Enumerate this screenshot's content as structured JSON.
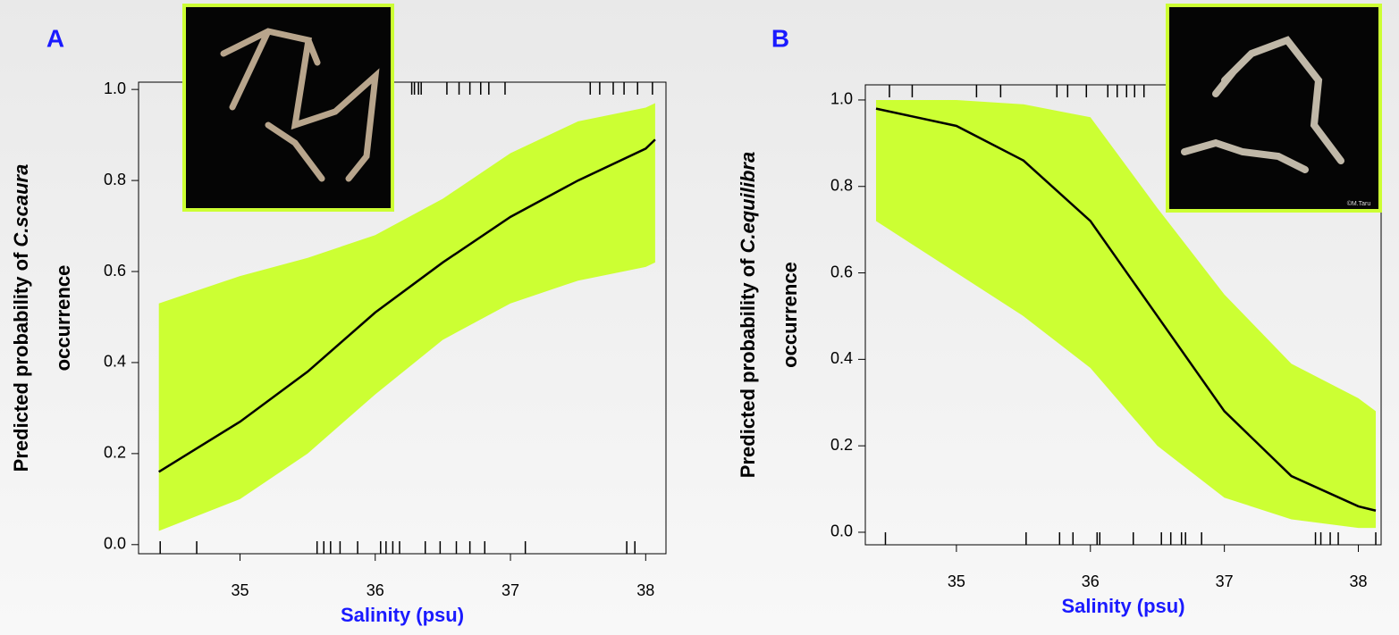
{
  "chart_data": [
    {
      "type": "line",
      "panel_label": "A",
      "ylabel": {
        "text": "Predicted probability of",
        "species": "C.scaura",
        "line2": "occurrence"
      },
      "xlabel": "Salinity (psu)",
      "x": [
        34.4,
        35,
        35.5,
        36,
        36.5,
        37,
        37.5,
        38,
        38.07
      ],
      "values": [
        0.16,
        0.27,
        0.38,
        0.51,
        0.62,
        0.72,
        0.8,
        0.87,
        0.89
      ],
      "ci_lower": [
        0.03,
        0.1,
        0.2,
        0.33,
        0.45,
        0.53,
        0.58,
        0.61,
        0.62
      ],
      "ci_upper": [
        0.53,
        0.59,
        0.63,
        0.68,
        0.76,
        0.86,
        0.93,
        0.96,
        0.97
      ],
      "line_color": "#000000",
      "band_color": "#ccff33",
      "rug_bottom": [
        34.41,
        34.68,
        35.57,
        35.62,
        35.67,
        35.74,
        35.87,
        36.04,
        36.08,
        36.13,
        36.18,
        36.37,
        36.48,
        36.6,
        36.7,
        36.81,
        37.11,
        37.86,
        37.92
      ],
      "rug_top": [
        36.27,
        36.29,
        36.32,
        36.34,
        36.53,
        36.62,
        36.7,
        36.78,
        36.84,
        36.96,
        37.59,
        37.66,
        37.76,
        37.84,
        37.94,
        38.05
      ],
      "xlim": [
        34.25,
        38.15
      ],
      "ylim": [
        -0.02,
        1.016
      ],
      "xticks": [
        35,
        36,
        37,
        38
      ],
      "yticks": [
        {
          "value": 0,
          "label": "0.0"
        },
        0.2,
        0.4,
        0.6,
        0.8,
        {
          "value": 1,
          "label": "1.0"
        }
      ]
    },
    {
      "type": "line",
      "panel_label": "B",
      "ylabel": {
        "text": "Predicted probability of",
        "species": "C.equilibra",
        "line2": "occurrence"
      },
      "xlabel": "Salinity (psu)",
      "photo_credit": "©M.Taru",
      "x": [
        34.4,
        35,
        35.5,
        36,
        36.5,
        37,
        37.5,
        38,
        38.13
      ],
      "values": [
        0.98,
        0.94,
        0.86,
        0.72,
        0.5,
        0.28,
        0.13,
        0.06,
        0.05
      ],
      "ci_lower": [
        0.72,
        0.6,
        0.5,
        0.38,
        0.2,
        0.08,
        0.03,
        0.01,
        0.01
      ],
      "ci_upper": [
        1.0,
        1.0,
        0.99,
        0.96,
        0.75,
        0.55,
        0.39,
        0.31,
        0.28
      ],
      "line_color": "#000000",
      "band_color": "#ccff33",
      "rug_bottom": [
        34.47,
        35.52,
        35.77,
        35.87,
        36.05,
        36.07,
        36.32,
        36.53,
        36.6,
        36.68,
        36.71,
        36.83,
        37.68,
        37.72,
        37.79,
        37.85,
        38.13
      ],
      "rug_top": [
        34.5,
        34.67,
        35.15,
        35.33,
        35.75,
        35.83,
        35.97,
        36.13,
        36.2,
        36.27,
        36.33,
        36.4
      ],
      "xlim": [
        34.32,
        38.17
      ],
      "ylim": [
        -0.029,
        1.035
      ],
      "xticks": [
        35,
        36,
        37,
        38
      ],
      "yticks": [
        {
          "value": 0,
          "label": "0.0"
        },
        0.2,
        0.4,
        0.6,
        0.8,
        {
          "value": 1,
          "label": "1.0"
        }
      ]
    }
  ]
}
